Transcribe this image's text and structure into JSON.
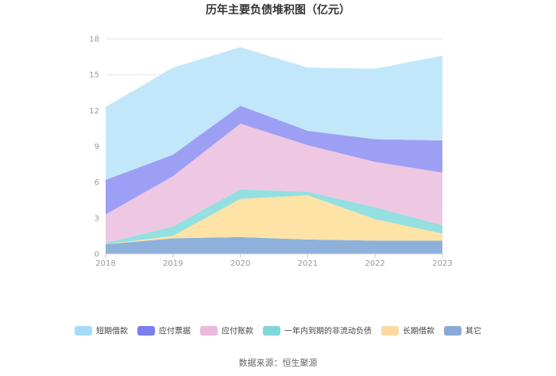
{
  "chart_data": {
    "type": "area",
    "stacked": true,
    "title": "历年主要负债堆积图（亿元）",
    "source": "数据来源：恒生聚源",
    "x": [
      "2018",
      "2019",
      "2020",
      "2021",
      "2022",
      "2023"
    ],
    "ylim": [
      0,
      18
    ],
    "yticks": [
      "0",
      "3",
      "6",
      "9",
      "12",
      "15",
      "18"
    ],
    "grid": true,
    "legend_position": "bottom",
    "series": [
      {
        "name": "其它",
        "color": "#8eb1dc",
        "values": [
          0.8,
          1.3,
          1.4,
          1.2,
          1.1,
          1.1
        ]
      },
      {
        "name": "长期借款",
        "color": "#fde3a6",
        "values": [
          0.0,
          0.2,
          3.2,
          3.7,
          1.8,
          0.6
        ]
      },
      {
        "name": "一年内到期的非流动负债",
        "color": "#94dfe0",
        "values": [
          0.1,
          0.8,
          0.8,
          0.3,
          1.0,
          0.7
        ]
      },
      {
        "name": "应付账款",
        "color": "#eec7e2",
        "values": [
          2.4,
          4.2,
          5.5,
          3.9,
          3.8,
          4.4
        ]
      },
      {
        "name": "应付票据",
        "color": "#9d9ff4",
        "values": [
          2.9,
          1.8,
          1.5,
          1.2,
          1.9,
          2.7
        ]
      },
      {
        "name": "短期借款",
        "color": "#c2e7fb",
        "values": [
          6.1,
          7.3,
          4.9,
          5.3,
          5.9,
          7.1
        ]
      }
    ],
    "legend_order": [
      "短期借款",
      "应付票据",
      "应付账款",
      "一年内到期的非流动负债",
      "长期借款",
      "其它"
    ],
    "legend_colors": {
      "短期借款": "#a5dcf9",
      "应付票据": "#7b7ef0",
      "应付账款": "#ebb9dc",
      "一年内到期的非流动负债": "#7fd7d9",
      "长期借款": "#fdd9a0",
      "其它": "#8aaad6"
    }
  }
}
